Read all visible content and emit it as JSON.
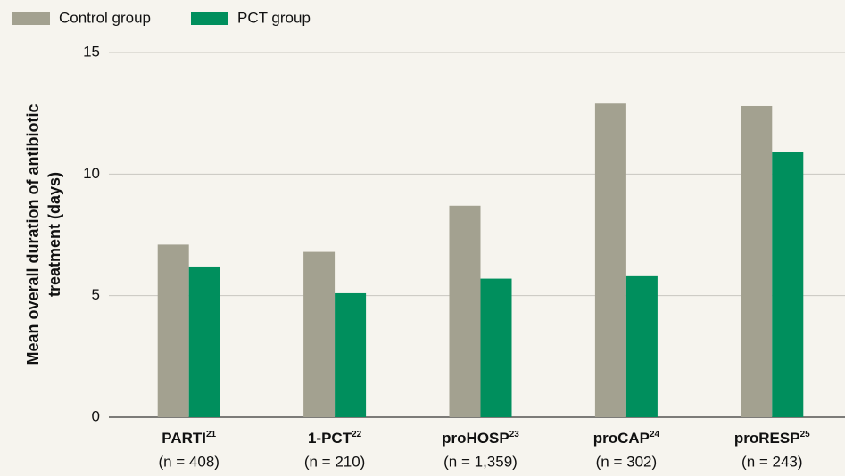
{
  "chart_data": {
    "type": "bar",
    "y_label": [
      "Mean overall duration of antibiotic",
      "treatment (days)"
    ],
    "categories": [
      "PARTI",
      "1-PCT",
      "proHOSP",
      "proCAP",
      "proRESP"
    ],
    "category_refs": [
      "21",
      "22",
      "23",
      "24",
      "25"
    ],
    "category_notes": [
      "(n = 408)",
      "(n = 210)",
      "(n = 1,359)",
      "(n = 302)",
      "(n = 243)"
    ],
    "series": [
      {
        "name": "Control group",
        "color": "#a3a190",
        "values": [
          7.1,
          6.8,
          8.7,
          12.9,
          12.8
        ]
      },
      {
        "name": "PCT group",
        "color": "#008f5d",
        "values": [
          6.2,
          5.1,
          5.7,
          5.8,
          10.9
        ]
      }
    ],
    "ylim": [
      0,
      15
    ],
    "yticks": [
      0,
      5,
      10,
      15
    ],
    "grid": true
  }
}
